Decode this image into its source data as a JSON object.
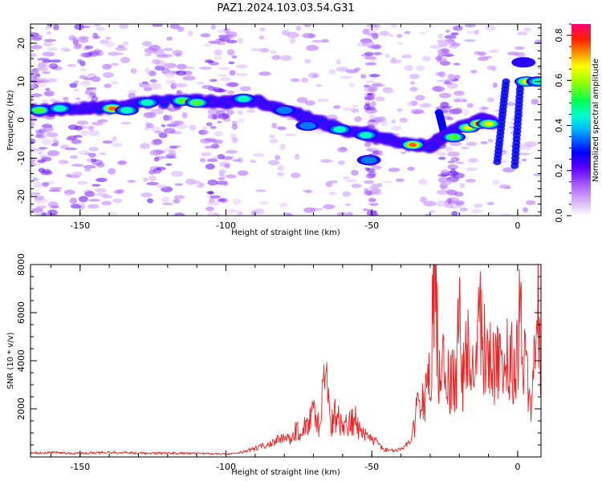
{
  "chart_data": [
    {
      "type": "heatmap",
      "title": "PAZ1.2024.103.03.54.G31",
      "xlabel": "Height of straight line (km)",
      "ylabel": "Frequency (Hz)",
      "xlim": [
        -167,
        8
      ],
      "ylim": [
        -25,
        25
      ],
      "xticks": [
        -150,
        -100,
        -50,
        0
      ],
      "yticks": [
        -20,
        -10,
        0,
        10,
        20
      ],
      "colorbar": {
        "label": "Normalized spectral amplitude",
        "range": [
          0,
          0.85
        ],
        "ticks": [
          0.0,
          0.2,
          0.4,
          0.6,
          0.8
        ]
      },
      "ridge": [
        {
          "x": -166,
          "freq": 2.5
        },
        {
          "x": -150,
          "freq": 3
        },
        {
          "x": -140,
          "freq": 3
        },
        {
          "x": -130,
          "freq": 4.5
        },
        {
          "x": -110,
          "freq": 5
        },
        {
          "x": -100,
          "freq": 4.5
        },
        {
          "x": -90,
          "freq": 5
        },
        {
          "x": -80,
          "freq": 2.5
        },
        {
          "x": -70,
          "freq": 0
        },
        {
          "x": -60,
          "freq": -2.5
        },
        {
          "x": -50,
          "freq": -4
        },
        {
          "x": -40,
          "freq": -6
        },
        {
          "x": -30,
          "freq": -7
        },
        {
          "x": -25,
          "freq": -4
        },
        {
          "x": -18,
          "freq": -1.5
        },
        {
          "x": -12,
          "freq": 0
        },
        {
          "x": -8,
          "freq": -1
        }
      ],
      "blobs": [
        {
          "x": -164,
          "freq": 2.5,
          "amp": 0.55
        },
        {
          "x": -157,
          "freq": 3,
          "amp": 0.45
        },
        {
          "x": -139,
          "freq": 3,
          "amp": 0.75
        },
        {
          "x": -134,
          "freq": 2.5,
          "amp": 0.5
        },
        {
          "x": -127,
          "freq": 4.5,
          "amp": 0.45
        },
        {
          "x": -115,
          "freq": 5,
          "amp": 0.55
        },
        {
          "x": -110,
          "freq": 4.5,
          "amp": 0.6
        },
        {
          "x": -94,
          "freq": 5.5,
          "amp": 0.5
        },
        {
          "x": -80,
          "freq": 2.5,
          "amp": 0.4
        },
        {
          "x": -72,
          "freq": -1.5,
          "amp": 0.4
        },
        {
          "x": -61,
          "freq": -2.5,
          "amp": 0.5
        },
        {
          "x": -52,
          "freq": -4,
          "amp": 0.45
        },
        {
          "x": -36,
          "freq": -6.5,
          "amp": 0.8
        },
        {
          "x": -22,
          "freq": -4.5,
          "amp": 0.55
        },
        {
          "x": -17,
          "freq": -2,
          "amp": 0.65
        },
        {
          "x": -13,
          "freq": -1,
          "amp": 0.85
        },
        {
          "x": -10,
          "freq": -1,
          "amp": 0.7
        },
        {
          "x": -51,
          "freq": -10.5,
          "amp": 0.35
        },
        {
          "x": 3,
          "freq": 10,
          "amp": 0.7
        },
        {
          "x": 7,
          "freq": 10,
          "amp": 0.5
        },
        {
          "x": 2,
          "freq": 15,
          "amp": 0.3
        }
      ],
      "streaks": [
        {
          "x_start": -4,
          "x_end": -7,
          "freq_start": 10,
          "freq_end": -11
        },
        {
          "x_start": 1,
          "x_end": -1,
          "freq_start": 10,
          "freq_end": -12
        },
        {
          "x_start": -27,
          "x_end": -25,
          "freq_start": 2,
          "freq_end": -4
        }
      ]
    },
    {
      "type": "line",
      "title": "",
      "xlabel": "Height of straight line (km)",
      "ylabel": "SNR (10 * v/v)",
      "xlim": [
        -167,
        8
      ],
      "ylim": [
        0,
        8000
      ],
      "xticks": [
        -150,
        -100,
        -50,
        0
      ],
      "yticks": [
        2000,
        4000,
        6000,
        8000
      ],
      "series": [
        {
          "color": "#e8231f",
          "x": [
            -167,
            -160,
            -150,
            -140,
            -130,
            -120,
            -110,
            -100,
            -95,
            -90,
            -85,
            -80,
            -78,
            -76,
            -74,
            -72,
            -70,
            -68,
            -66,
            -64,
            -62,
            -60,
            -58,
            -56,
            -54,
            -52,
            -50,
            -48,
            -46,
            -44,
            -42,
            -40,
            -38,
            -36,
            -34,
            -32,
            -30,
            -28.5,
            -27,
            -25,
            -23,
            -21,
            -20.5,
            -19,
            -17,
            -15,
            -13,
            -11,
            -9,
            -7,
            -5,
            -4,
            -2,
            0,
            1,
            2,
            3,
            4,
            5,
            6,
            7,
            8
          ],
          "y": [
            150,
            180,
            150,
            200,
            150,
            160,
            140,
            120,
            180,
            350,
            550,
            850,
            700,
            1100,
            900,
            1400,
            1800,
            1300,
            3600,
            1500,
            1800,
            1200,
            1300,
            1600,
            1000,
            900,
            700,
            600,
            300,
            280,
            250,
            300,
            500,
            1000,
            2200,
            2600,
            3200,
            8100,
            3200,
            3800,
            3000,
            3500,
            6500,
            3300,
            4600,
            3800,
            5800,
            4200,
            4000,
            3800,
            3900,
            4100,
            3900,
            4200,
            6300,
            4500,
            3800,
            2800,
            1900,
            5000,
            6000,
            3200
          ]
        }
      ]
    }
  ]
}
